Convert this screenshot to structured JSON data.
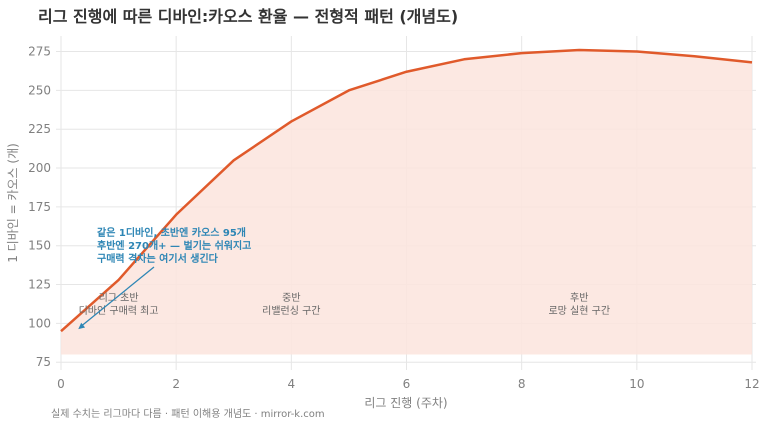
{
  "chart_data": {
    "type": "area",
    "title": "리그 진행에 따른 디바인:카오스 환율 — 전형적 패턴 (개념도)",
    "xlabel": "리그 진행 (주차)",
    "ylabel": "1 디바인 = 카오스 (개)",
    "footnote": "실제 수치는 리그마다 다름 · 패턴 이해용 개념도 · mirror-k.com",
    "xlim": [
      0,
      12
    ],
    "ylim": [
      70,
      285
    ],
    "x_ticks": [
      0,
      2,
      4,
      6,
      8,
      10,
      12
    ],
    "y_ticks": [
      75,
      100,
      125,
      150,
      175,
      200,
      225,
      250,
      275
    ],
    "fill_baseline": 80,
    "grid": true,
    "series": [
      {
        "x": [
          0,
          1,
          2,
          3,
          4,
          5,
          6,
          7,
          8,
          9,
          10,
          11,
          12
        ],
        "y": [
          95,
          128,
          170,
          205,
          230,
          250,
          262,
          270,
          274,
          276,
          275,
          272,
          268
        ]
      }
    ],
    "phase_labels": [
      {
        "x": 1.0,
        "line1": "리그 초반",
        "line2": "디바인 구매력 최고"
      },
      {
        "x": 4.0,
        "line1": "중반",
        "line2": "리밸런싱 구간"
      },
      {
        "x": 9.0,
        "line1": "후반",
        "line2": "로망 실현 구간"
      }
    ],
    "annotation": {
      "lines": [
        "같은 1디바인, 초반엔 카오스 95개",
        "후반엔 270개+ — 벌기는 쉬워지고",
        "구매력 격차는 여기서 생긴다"
      ],
      "point": {
        "x": 0.3,
        "y": 95
      }
    },
    "colors": {
      "line": "#e05a2b",
      "fill": "#fbe4dd",
      "annotation": "#2e86b5",
      "grid": "#e6e6e6",
      "axis_text": "#808080",
      "title": "#333333",
      "phase_text": "#666666"
    }
  }
}
